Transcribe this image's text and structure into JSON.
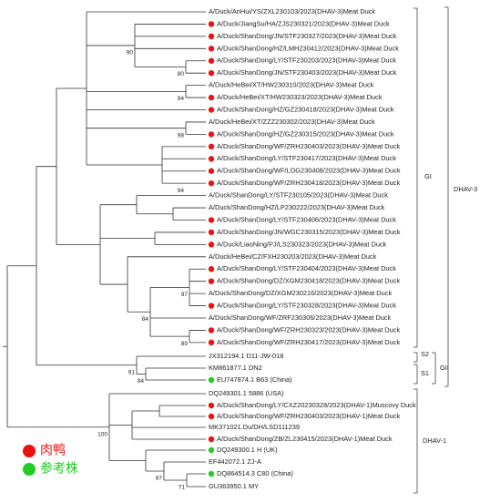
{
  "leaves": [
    {
      "label": "A/Duck/AnHui/YS/ZXL230103/2023(DHAV-3)Meat Duck"
    },
    {
      "label": "A/Duck/JiangSu/HA/ZJS230321/2023(DHAV-3)Meat Duck",
      "marker": "#ee1111"
    },
    {
      "label": "A/Duck/ShanDong/JN/STF230327/2023(DHAV-3)Meat Duck",
      "marker": "#ee1111"
    },
    {
      "label": "A/Duck/ShanDong/HZ/LMH230412/2023(DHAV-3)Meat Duck",
      "marker": "#ee1111"
    },
    {
      "label": "A/Duck/ShanDong/LY/STF230203/2023(DHAV-3)Meat Duck",
      "marker": "#ee1111"
    },
    {
      "label": "A/Duck/ShanDong/JN/STF230403/2023(DHAV-3)Meat Duck",
      "marker": "#ee1111"
    },
    {
      "label": "A/Duck/HeBei/XT/HW230310/2023(DHAV-3)Meat Duck"
    },
    {
      "label": "A/Duck/HeBei/XT/HW230323/2023(DHAV-3)Meat Duck",
      "marker": "#ee1111"
    },
    {
      "label": "A/Duck/ShanDong/HZ/GZ230418/2023(DHAV-3)Meat Duck",
      "marker": "#ee1111"
    },
    {
      "label": "A/Duck/HeBei/XT/ZZZ230302/2023(DHAV-3)Meat Duck"
    },
    {
      "label": "A/Duck/ShanDong/HZ/GZ230315/2023(DHAV-3)Meat Duck",
      "marker": "#ee1111"
    },
    {
      "label": "A/Duck/ShanDong/WF/ZRH230403/2023(DHAV-3)Meat Duck",
      "marker": "#ee1111"
    },
    {
      "label": "A/Duck/ShanDong/LY/STF230417/2023(DHAV-3)Meat Duck",
      "marker": "#ee1111"
    },
    {
      "label": "A/Duck/ShanDong/WF/LOG230408/2023(DHAV-3)Meat Duck",
      "marker": "#ee1111"
    },
    {
      "label": "A/Duck/ShanDong/WF/ZRH230418/2023(DHAV-3)Meat Duck",
      "marker": "#ee1111"
    },
    {
      "label": "A/Duck/ShanDong/LY/STF230105/2023(DHAV-3)Meat Duck"
    },
    {
      "label": "A/Duck/ShanDong/HZ/LP230222/2023(DHAV-3)Meat Duck"
    },
    {
      "label": "A/Duck/ShanDong/LY/STF230406/2023(DHAV-3)Meat Duck",
      "marker": "#ee1111"
    },
    {
      "label": "A/Duck/ShanDong/JN/WGC230315/2023(DHAV-3)Meat Duck",
      "marker": "#ee1111"
    },
    {
      "label": "A/Duck/LiaoNing/PJ/LS230323/2023(DHAV-3)Meat Duck",
      "marker": "#ee1111"
    },
    {
      "label": "A/Duck/HeBei/CZ/FXH230203/2023(DHAV-3)Meat Duck"
    },
    {
      "label": "A/Duck/ShanDong/LY/STF230404/2023(DHAV-3)Meat Duck",
      "marker": "#ee1111"
    },
    {
      "label": "A/Duck/ShanDong/DZ/XGM230418/2023(DHAV-3)Meat Duck",
      "marker": "#ee1111"
    },
    {
      "label": "A/Duck/ShanDong/DZ/XGM230216/2023(DHAV-3)Meat Duck"
    },
    {
      "label": "A/Duck/ShanDong/LY/STF230328/2023(DHAV-3)Meat Duck",
      "marker": "#ee1111"
    },
    {
      "label": "A/Duck/ShanDong/WF/ZRF230306/2023(DHAV-3)Meat Duck"
    },
    {
      "label": "A/Duck/ShanDong/WF/ZRH230323/2023(DHAV-3)Meat Duck",
      "marker": "#ee1111"
    },
    {
      "label": "A/Duck/ShanDong/WF/ZRH230417/2023(DHAV-3)Meat Duck",
      "marker": "#ee1111"
    },
    {
      "label": "JX312194.1 D11-JW-018"
    },
    {
      "label": "KM861877.1 DN2"
    },
    {
      "label": "EU747874.1 B63 (China)",
      "marker": "#22cc22"
    },
    {
      "label": "DQ249301.1 5886 (USA)"
    },
    {
      "label": "A/Duck/ShanDong/LY/CXZ20230328/2023(DHAV-1)Muscovy Duck",
      "marker": "#ee1111"
    },
    {
      "label": "A/Duck/ShanDong/WF/ZRH230403/2023(DHAV-1)Meat Duck",
      "marker": "#ee1111"
    },
    {
      "label": "MK371021.Du/DH/LSD111239"
    },
    {
      "label": "A/Duck/ShanDong/ZB/ZL230415/2023(DHAV-1)Meat Duck",
      "marker": "#ee1111"
    },
    {
      "label": "DQ249300.1 H (UK)",
      "marker": "#22cc22"
    },
    {
      "label": "EF442072.1 ZJ-A"
    },
    {
      "label": "DQ864514.3 C80 (China)",
      "marker": "#22cc22"
    },
    {
      "label": "GU363950.1 MY"
    }
  ],
  "bootstrap": [
    90,
    80,
    94,
    98,
    94,
    97,
    84,
    89,
    91,
    94,
    100,
    87,
    71
  ],
  "clades": [
    {
      "label": "GI"
    },
    {
      "label": "DHAV-3"
    },
    {
      "label": "S2"
    },
    {
      "label": "S1"
    },
    {
      "label": "GII"
    },
    {
      "label": "DHAV-1"
    }
  ],
  "legend": [
    {
      "label": "肉鸭",
      "color": "#ee1111"
    },
    {
      "label": "参考株",
      "color": "#22cc22"
    }
  ]
}
